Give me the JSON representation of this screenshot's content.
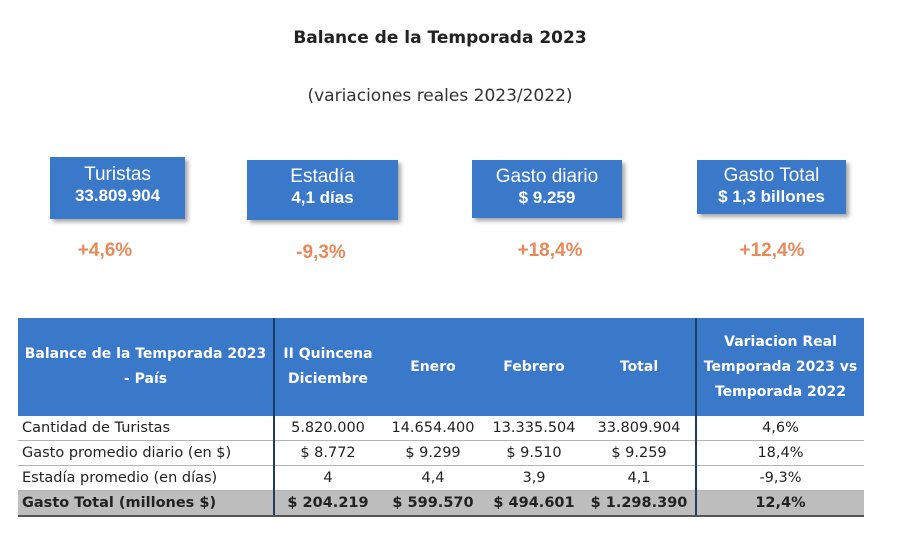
{
  "header": {
    "title": "Balance de la Temporada 2023",
    "subtitle": "(variaciones reales 2023/2022)"
  },
  "colors": {
    "card": "#3a78c9",
    "change": "#e8895a",
    "table_header": "#3a78c9",
    "total_row": "#bdbdbd"
  },
  "kpis": [
    {
      "label": "Turistas",
      "value": "33.809.904",
      "change": "+4,6%"
    },
    {
      "label": "Estadía",
      "value": "4,1 días",
      "change": "-9,3%"
    },
    {
      "label": "Gasto diario",
      "value": "$ 9.259",
      "change": "+18,4%"
    },
    {
      "label": "Gasto Total",
      "value": "$ 1,3 billones",
      "change": "+12,4%"
    }
  ],
  "table": {
    "headers": [
      "Balance de la Temporada 2023 - País",
      "II Quincena Diciembre",
      "Enero",
      "Febrero",
      "Total",
      "Variacion Real Temporada 2023 vs Temporada 2022"
    ],
    "rows": [
      [
        "Cantidad de Turistas",
        "5.820.000",
        "14.654.400",
        "13.335.504",
        "33.809.904",
        "4,6%"
      ],
      [
        "Gasto promedio diario (en $)",
        "$ 8.772",
        "$ 9.299",
        "$ 9.510",
        "$ 9.259",
        "18,4%"
      ],
      [
        "Estadía promedio (en días)",
        "4",
        "4,4",
        "3,9",
        "4,1",
        "-9,3%"
      ],
      [
        "Gasto Total (millones $)",
        "$ 204.219",
        "$ 599.570",
        "$ 494.601",
        "$ 1.298.390",
        "12,4%"
      ]
    ]
  }
}
